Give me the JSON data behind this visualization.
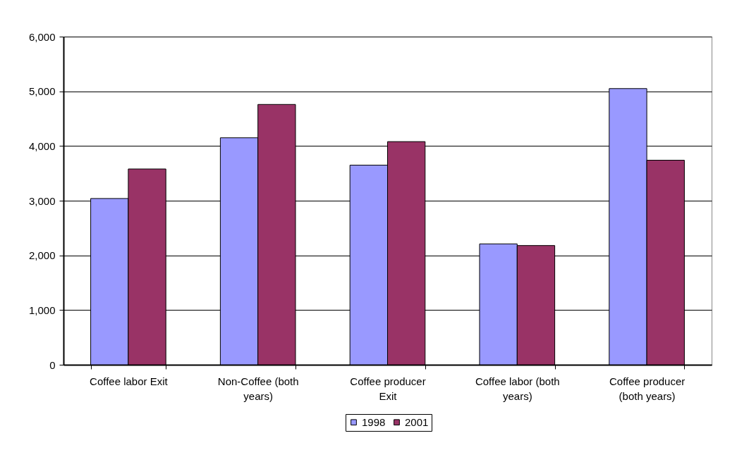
{
  "chart_data": {
    "type": "bar",
    "categories": [
      "Coffee labor Exit",
      "Non-Coffee (both years)",
      "Coffee producer Exit",
      "Coffee labor (both years)",
      "Coffee producer (both years)"
    ],
    "series": [
      {
        "name": "1998",
        "color": "#9999ff",
        "values": [
          3040,
          4150,
          3650,
          2210,
          5050
        ]
      },
      {
        "name": "2001",
        "color": "#993366",
        "values": [
          3580,
          4760,
          4080,
          2180,
          3740
        ]
      }
    ],
    "ylim": [
      0,
      6000
    ],
    "yticks": [
      0,
      {
        "value": 1000,
        "label": "1,000"
      },
      {
        "value": 2000,
        "label": "2,000"
      },
      {
        "value": 3000,
        "label": "3,000"
      },
      {
        "value": 4000,
        "label": "4,000"
      },
      {
        "value": 5000,
        "label": "5,000"
      },
      {
        "value": 6000,
        "label": "6,000"
      }
    ],
    "grid": "y",
    "legend": "bottom"
  }
}
